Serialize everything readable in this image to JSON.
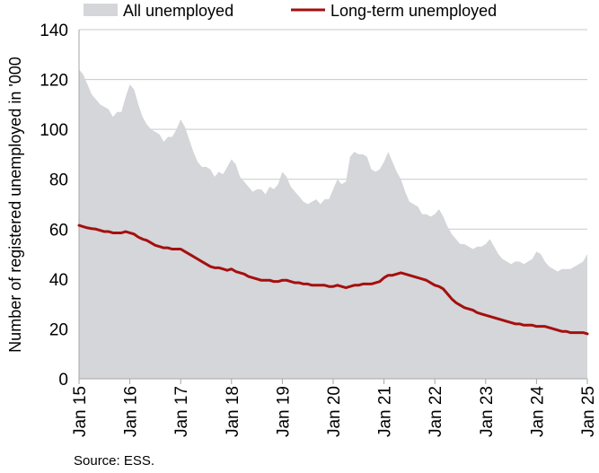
{
  "chart_data": {
    "type": "area",
    "title": "",
    "xlabel": "",
    "ylabel": "Number of registered unemployed in '000",
    "ylim": [
      0,
      140
    ],
    "yticks": [
      0,
      20,
      40,
      60,
      80,
      100,
      120,
      140
    ],
    "xlim": [
      0,
      120
    ],
    "xticks": [
      {
        "x": 0,
        "label": "Jan 15"
      },
      {
        "x": 12,
        "label": "Jan 16"
      },
      {
        "x": 24,
        "label": "Jan 17"
      },
      {
        "x": 36,
        "label": "Jan 18"
      },
      {
        "x": 48,
        "label": "Jan 19"
      },
      {
        "x": 60,
        "label": "Jan 20"
      },
      {
        "x": 72,
        "label": "Jan 21"
      },
      {
        "x": 84,
        "label": "Jan 22"
      },
      {
        "x": 96,
        "label": "Jan 23"
      },
      {
        "x": 108,
        "label": "Jan 24"
      },
      {
        "x": 120,
        "label": "Jan 25"
      }
    ],
    "grid": "horizontal",
    "legend_position": "top",
    "source": "Source: ESS.",
    "series": [
      {
        "name": "All unemployed",
        "type": "area",
        "color": "#d4d6d9",
        "values": [
          124,
          122,
          118,
          114,
          112,
          110,
          109,
          108,
          105,
          107,
          107,
          113,
          118,
          116,
          110,
          105,
          102,
          100,
          99,
          98,
          95,
          97,
          97,
          100,
          104,
          101,
          96,
          91,
          87,
          85,
          85,
          84,
          81,
          83,
          82,
          85,
          88,
          86,
          81,
          79,
          77,
          75,
          76,
          76,
          74,
          77,
          76,
          78,
          83,
          81,
          77,
          75,
          73,
          71,
          70,
          71,
          72,
          70,
          72,
          72,
          76,
          80,
          78,
          79,
          89,
          91,
          90,
          90,
          89,
          84,
          83,
          84,
          87,
          91,
          87,
          83,
          80,
          75,
          71,
          70,
          69,
          66,
          66,
          65,
          66,
          68,
          65,
          61,
          58,
          56,
          54,
          54,
          53,
          52,
          53,
          53,
          54,
          56,
          53,
          50,
          48,
          47,
          46,
          47,
          47,
          46,
          47,
          48,
          51,
          50,
          47,
          45,
          44,
          43,
          44,
          44,
          44,
          45,
          46,
          47,
          50
        ]
      },
      {
        "name": "Long-term unemployed",
        "type": "line",
        "color": "#a50f0f",
        "values": [
          61.5,
          61,
          60.5,
          60.2,
          60,
          59.5,
          59,
          59,
          58.5,
          58.5,
          58.5,
          59,
          58.5,
          58,
          56.8,
          56,
          55.5,
          54.5,
          53.5,
          53,
          52.5,
          52.5,
          52,
          52,
          52,
          51,
          50,
          49,
          48,
          47,
          46,
          45,
          44.5,
          44.5,
          44,
          43.5,
          44,
          43,
          42.5,
          42,
          41,
          40.5,
          40,
          39.5,
          39.5,
          39.5,
          39,
          39,
          39.5,
          39.5,
          39,
          38.5,
          38.5,
          38,
          38,
          37.5,
          37.5,
          37.5,
          37.5,
          37,
          37,
          37.5,
          37,
          36.5,
          37,
          37.5,
          37.5,
          38,
          38,
          38,
          38.5,
          39,
          40.5,
          41.5,
          41.5,
          42,
          42.5,
          42,
          41.5,
          41,
          40.5,
          40,
          39.5,
          38.5,
          37.5,
          37,
          36,
          34,
          32,
          30.5,
          29.5,
          28.5,
          28,
          27.5,
          26.5,
          26,
          25.5,
          25,
          24.5,
          24,
          23.5,
          23,
          22.5,
          22,
          22,
          21.5,
          21.5,
          21.5,
          21,
          21,
          21,
          20.5,
          20,
          19.5,
          19,
          19,
          18.5,
          18.5,
          18.5,
          18.5,
          18
        ]
      }
    ]
  }
}
